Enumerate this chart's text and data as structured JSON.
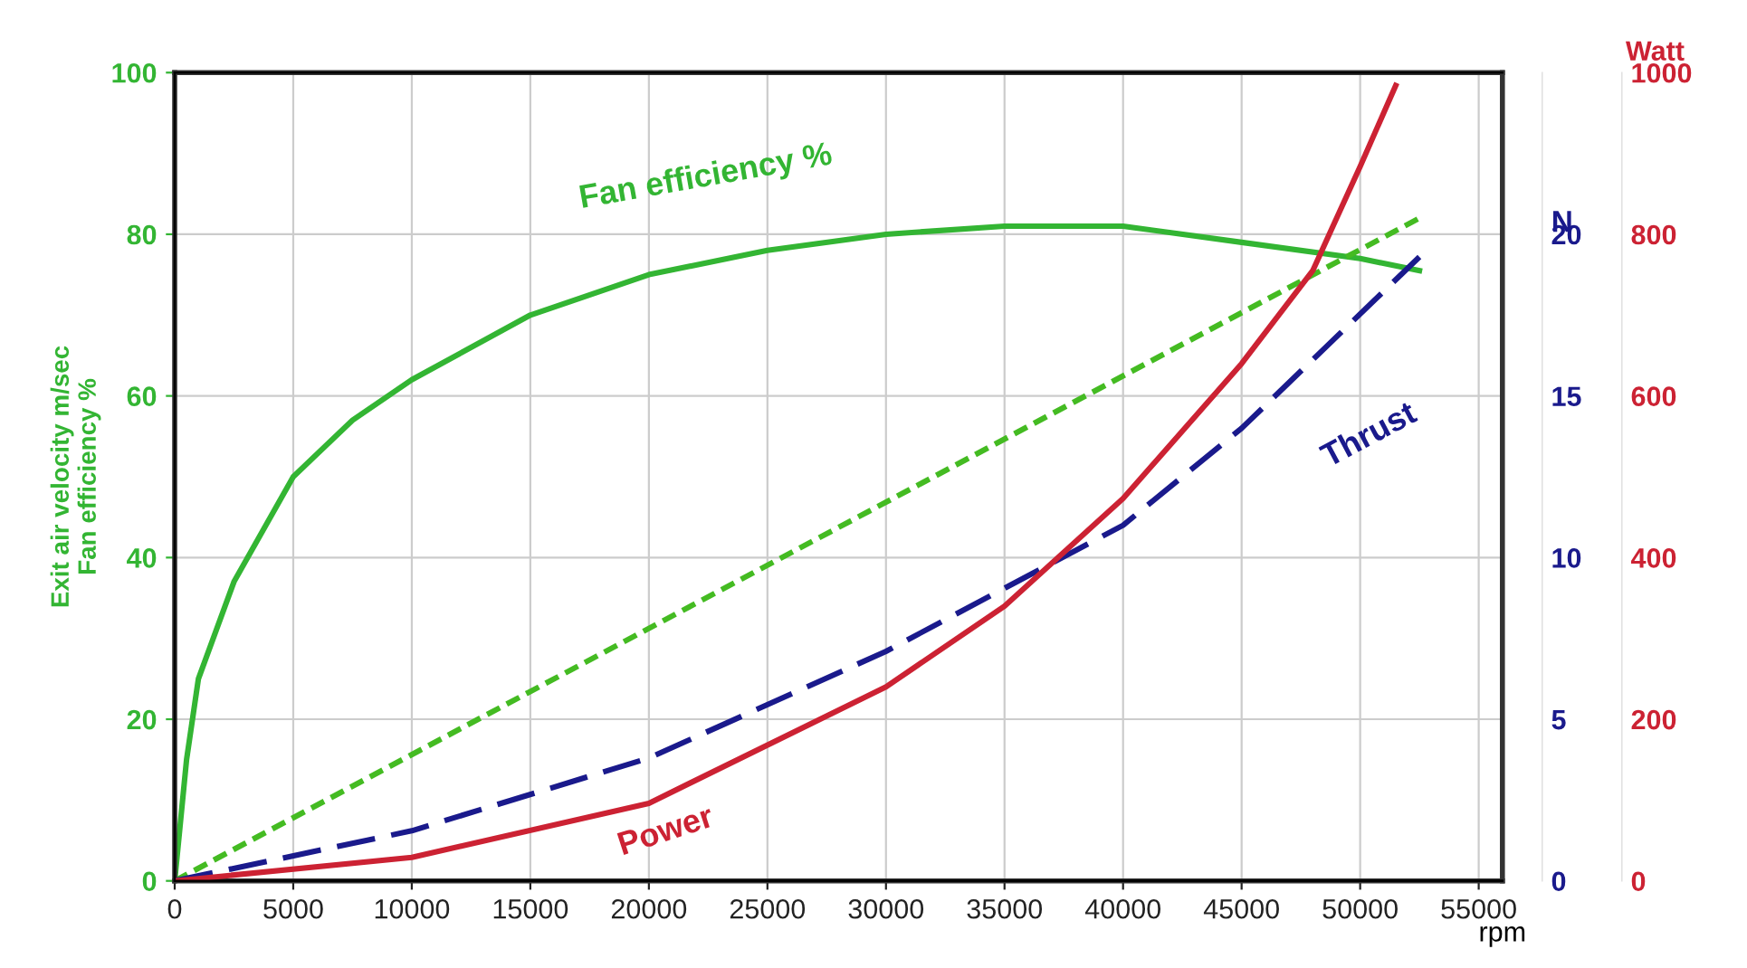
{
  "chart_data": {
    "type": "line",
    "xlabel": "rpm",
    "ylabel": "Exit air velocity m/sec\nFan efficiency %",
    "y2label": "N",
    "y3label": "Watt",
    "xlim": [
      0,
      56000
    ],
    "xticks": [
      0,
      5000,
      10000,
      15000,
      20000,
      25000,
      30000,
      35000,
      40000,
      45000,
      50000,
      55000
    ],
    "ylim": [
      0,
      100
    ],
    "yticks": [
      0,
      20,
      40,
      60,
      80,
      100
    ],
    "y2lim": [
      0,
      25
    ],
    "y2ticks": [
      0,
      5,
      10,
      15,
      20
    ],
    "y3lim": [
      0,
      1000
    ],
    "y3ticks": [
      0,
      200,
      400,
      600,
      800,
      1000
    ],
    "grid": true,
    "marker": "none",
    "series": [
      {
        "color": "#33b533",
        "line_style": "solid",
        "x": [
          0,
          500,
          1000,
          2500,
          5000,
          7500,
          10000,
          15000,
          20000,
          25000,
          30000,
          35000,
          40000,
          45000,
          50000,
          52500
        ],
        "values": [
          0,
          15,
          25,
          37,
          50,
          57,
          62,
          70,
          75,
          78,
          80,
          81,
          81,
          79,
          77,
          75.5
        ]
      },
      {
        "color": "#44bb22",
        "line_style": "dotted",
        "x": [
          0,
          52500
        ],
        "values": [
          0,
          82
        ]
      },
      {
        "color": "#1a1a8c",
        "line_style": "dashed",
        "axis": "y2",
        "x": [
          0,
          10000,
          20000,
          30000,
          40000,
          45000,
          52500
        ],
        "values": [
          0,
          1.55,
          3.8,
          7.1,
          11,
          14,
          19.3
        ]
      },
      {
        "color": "#cc2233",
        "line_style": "solid",
        "axis": "y3",
        "x": [
          0,
          10000,
          20000,
          30000,
          35000,
          40000,
          45000,
          48000,
          50000,
          51500
        ],
        "values": [
          0,
          29,
          96,
          240,
          340,
          473,
          640,
          755,
          884,
          984
        ]
      }
    ],
    "annotations": [
      "Fan efficiency %",
      "Thrust",
      "Power"
    ]
  }
}
